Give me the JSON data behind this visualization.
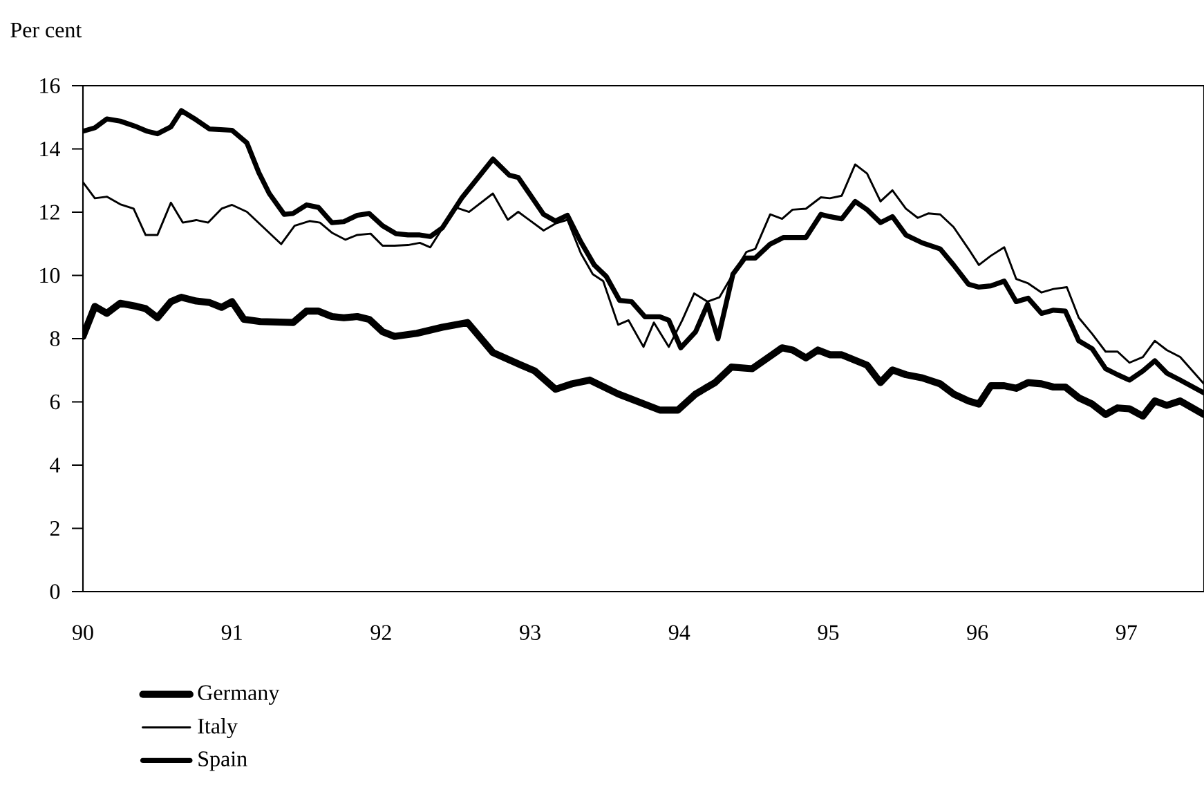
{
  "chart_data": {
    "type": "line",
    "ylabel": "Per cent",
    "xlim": [
      90,
      97.52
    ],
    "xticks": [
      90,
      91,
      92,
      93,
      94,
      95,
      96,
      97
    ],
    "ylim": [
      0,
      16
    ],
    "yticks": [
      0,
      2,
      4,
      6,
      8,
      10,
      12,
      14,
      16
    ],
    "grid": false,
    "legend": "bottom left",
    "marker": "none",
    "line_style": "solid",
    "series": [
      {
        "name": "Germany",
        "color": "#000000",
        "x": [
          90.0,
          90.08,
          90.16,
          90.25,
          90.36,
          90.42,
          90.5,
          90.59,
          90.66,
          90.76,
          90.85,
          90.93,
          91.0,
          91.08,
          91.19,
          91.41,
          91.5,
          91.58,
          91.67,
          91.75,
          91.84,
          91.92,
          92.01,
          92.09,
          92.24,
          92.41,
          92.58,
          92.75,
          92.94,
          93.03,
          93.17,
          93.28,
          93.4,
          93.59,
          93.87,
          93.99,
          94.11,
          94.24,
          94.35,
          94.49,
          94.69,
          94.76,
          94.85,
          94.93,
          95.01,
          95.09,
          95.26,
          95.35,
          95.43,
          95.52,
          95.63,
          95.75,
          95.84,
          95.94,
          96.01,
          96.09,
          96.18,
          96.26,
          96.34,
          96.43,
          96.51,
          96.59,
          96.68,
          96.77,
          96.86,
          96.94,
          97.02,
          97.11,
          97.19,
          97.27,
          97.36,
          97.52
        ],
        "values": [
          8.07,
          9.02,
          8.8,
          9.12,
          9.02,
          8.95,
          8.66,
          9.17,
          9.31,
          9.19,
          9.14,
          8.99,
          9.17,
          8.61,
          8.54,
          8.51,
          8.87,
          8.87,
          8.7,
          8.66,
          8.7,
          8.61,
          8.22,
          8.07,
          8.17,
          8.36,
          8.51,
          7.56,
          7.16,
          6.98,
          6.4,
          6.57,
          6.69,
          6.25,
          5.74,
          5.74,
          6.25,
          6.61,
          7.1,
          7.05,
          7.71,
          7.64,
          7.39,
          7.64,
          7.49,
          7.49,
          7.16,
          6.61,
          7.01,
          6.86,
          6.76,
          6.57,
          6.25,
          6.03,
          5.93,
          6.51,
          6.51,
          6.43,
          6.61,
          6.57,
          6.47,
          6.47,
          6.13,
          5.93,
          5.6,
          5.81,
          5.78,
          5.55,
          6.03,
          5.89,
          6.03,
          5.6
        ]
      },
      {
        "name": "Italy",
        "color": "#000000",
        "x": [
          90.0,
          90.08,
          90.16,
          90.25,
          90.34,
          90.42,
          90.5,
          90.59,
          90.67,
          90.76,
          90.84,
          90.93,
          91.0,
          91.1,
          91.33,
          91.42,
          91.52,
          91.59,
          91.67,
          91.76,
          91.84,
          91.93,
          92.01,
          92.09,
          92.18,
          92.26,
          92.33,
          92.5,
          92.59,
          92.75,
          92.85,
          92.92,
          93.09,
          93.17,
          93.25,
          93.34,
          93.42,
          93.49,
          93.59,
          93.66,
          93.76,
          93.83,
          93.93,
          94.02,
          94.1,
          94.19,
          94.27,
          94.36,
          94.45,
          94.51,
          94.61,
          94.69,
          94.76,
          94.85,
          94.95,
          95.01,
          95.09,
          95.18,
          95.26,
          95.35,
          95.43,
          95.52,
          95.6,
          95.67,
          95.75,
          95.84,
          95.94,
          96.01,
          96.09,
          96.18,
          96.26,
          96.34,
          96.43,
          96.51,
          96.6,
          96.68,
          96.77,
          96.86,
          96.94,
          97.02,
          97.11,
          97.19,
          97.27,
          97.36,
          97.52
        ],
        "values": [
          12.95,
          12.44,
          12.49,
          12.25,
          12.11,
          11.28,
          11.28,
          12.3,
          11.67,
          11.75,
          11.67,
          12.11,
          12.23,
          12.01,
          10.99,
          11.57,
          11.72,
          11.67,
          11.35,
          11.13,
          11.28,
          11.32,
          10.94,
          10.94,
          10.96,
          11.03,
          10.89,
          12.15,
          12.01,
          12.59,
          11.76,
          12.01,
          11.42,
          11.64,
          11.76,
          10.7,
          10.04,
          9.82,
          8.44,
          8.58,
          7.74,
          8.51,
          7.74,
          8.58,
          9.43,
          9.17,
          9.31,
          10.04,
          10.74,
          10.84,
          11.93,
          11.79,
          12.08,
          12.11,
          12.47,
          12.44,
          12.52,
          13.51,
          13.22,
          12.34,
          12.69,
          12.11,
          11.82,
          11.96,
          11.93,
          11.53,
          10.84,
          10.33,
          10.62,
          10.89,
          9.89,
          9.75,
          9.46,
          9.57,
          9.63,
          8.66,
          8.15,
          7.59,
          7.59,
          7.24,
          7.42,
          7.93,
          7.64,
          7.42,
          6.57
        ]
      },
      {
        "name": "Spain",
        "color": "#000000",
        "x": [
          90.0,
          90.08,
          90.16,
          90.25,
          90.36,
          90.43,
          90.5,
          90.59,
          90.66,
          90.76,
          90.85,
          91.0,
          91.1,
          91.18,
          91.25,
          91.35,
          91.41,
          91.5,
          91.58,
          91.67,
          91.75,
          91.84,
          91.92,
          92.01,
          92.1,
          92.18,
          92.26,
          92.33,
          92.41,
          92.54,
          92.75,
          92.86,
          92.92,
          93.09,
          93.17,
          93.25,
          93.34,
          93.43,
          93.51,
          93.6,
          93.68,
          93.77,
          93.87,
          93.93,
          94.01,
          94.11,
          94.19,
          94.26,
          94.36,
          94.44,
          94.51,
          94.61,
          94.7,
          94.85,
          94.95,
          95.01,
          95.09,
          95.18,
          95.26,
          95.35,
          95.43,
          95.52,
          95.63,
          95.75,
          95.84,
          95.94,
          96.01,
          96.09,
          96.18,
          96.26,
          96.34,
          96.43,
          96.51,
          96.59,
          96.68,
          96.77,
          96.86,
          96.94,
          97.02,
          97.11,
          97.19,
          97.27,
          97.36,
          97.52
        ],
        "values": [
          14.56,
          14.67,
          14.95,
          14.88,
          14.7,
          14.56,
          14.48,
          14.7,
          15.21,
          14.92,
          14.63,
          14.59,
          14.19,
          13.25,
          12.59,
          11.93,
          11.96,
          12.23,
          12.15,
          11.67,
          11.7,
          11.9,
          11.96,
          11.57,
          11.32,
          11.28,
          11.28,
          11.23,
          11.5,
          12.44,
          13.68,
          13.17,
          13.1,
          11.93,
          11.72,
          11.9,
          11.06,
          10.33,
          9.97,
          9.21,
          9.17,
          8.69,
          8.69,
          8.58,
          7.71,
          8.22,
          9.09,
          8.0,
          10.04,
          10.55,
          10.55,
          10.99,
          11.2,
          11.2,
          11.93,
          11.86,
          11.79,
          12.34,
          12.08,
          11.67,
          11.86,
          11.28,
          11.03,
          10.84,
          10.33,
          9.72,
          9.63,
          9.67,
          9.82,
          9.17,
          9.28,
          8.8,
          8.9,
          8.87,
          7.93,
          7.68,
          7.05,
          6.86,
          6.69,
          6.98,
          7.3,
          6.91,
          6.69,
          6.28
        ]
      }
    ]
  }
}
